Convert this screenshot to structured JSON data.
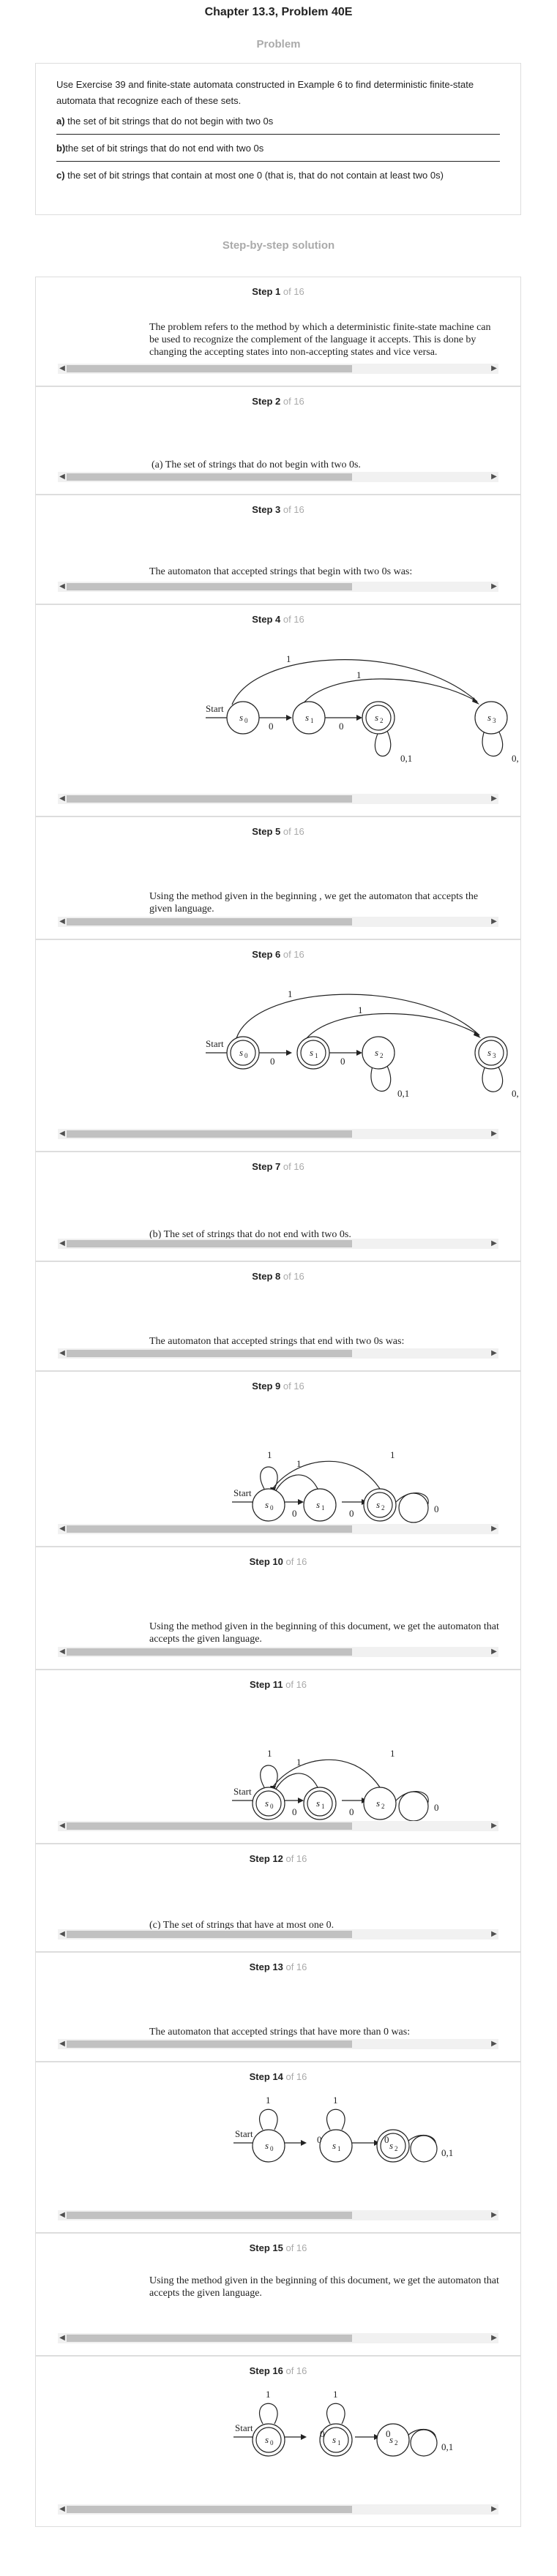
{
  "header": {
    "chapter_title": "Chapter 13.3, Problem 40E",
    "problem_label": "Problem",
    "solution_label": "Step-by-step solution"
  },
  "problem": {
    "intro": "Use Exercise 39 and finite-state automata constructed in Example 6 to find deterministic finite-state automata that recognize each of these sets.",
    "parts": [
      {
        "letter": "a)",
        "text": " the set of bit strings that do not begin with two 0s"
      },
      {
        "letter": "b)",
        "text": "the set of bit strings that do not end with two 0s"
      },
      {
        "letter": "c)",
        "text": " the set of bit strings that contain at most one 0 (that is, that do not contain at least two 0s)"
      }
    ]
  },
  "steps": [
    {
      "number": "Step 1",
      "of": " of 16",
      "text": "The problem refers to the method by which a deterministic finite-state machine can be used to recognize the complement of the language it accepts. This is done by changing the accepting states into non-accepting states and vice versa."
    },
    {
      "number": "Step 2",
      "of": " of 16",
      "text": "(a) The set of strings that do not begin with two 0s."
    },
    {
      "number": "Step 3",
      "of": " of 16",
      "text": "The automaton that accepted strings that begin with two 0s was:"
    },
    {
      "number": "Step 4",
      "of": " of 16"
    },
    {
      "number": "Step 5",
      "of": " of 16",
      "text": "Using the method given in the beginning , we get the automaton that accepts the given language."
    },
    {
      "number": "Step 6",
      "of": " of 16"
    },
    {
      "number": "Step 7",
      "of": " of 16",
      "text": "(b) The set of strings that do not end with two 0s."
    },
    {
      "number": "Step 8",
      "of": " of 16",
      "text": "The automaton that accepted strings that end with two 0s was:"
    },
    {
      "number": "Step 9",
      "of": " of 16"
    },
    {
      "number": "Step 10",
      "of": " of 16",
      "text": "Using the method given in the beginning of this document, we get the automaton that accepts the given language."
    },
    {
      "number": "Step 11",
      "of": " of 16"
    },
    {
      "number": "Step 12",
      "of": " of 16",
      "text": "(c) The set of strings that have at most one 0."
    },
    {
      "number": "Step 13",
      "of": " of 16",
      "text": "The automaton that accepted strings that have more than 0 was:"
    },
    {
      "number": "Step 14",
      "of": " of 16"
    },
    {
      "number": "Step 15",
      "of": " of 16",
      "text": "Using the method given in the beginning of this document, we get the automaton that accepts the given language."
    },
    {
      "number": "Step 16",
      "of": " of 16"
    }
  ],
  "diagram_labels": {
    "start": "Start",
    "s0": "s",
    "s1": "s",
    "s2": "s",
    "s3": "s",
    "sub0": "0",
    "sub1": "1",
    "sub2": "2",
    "sub3": "3",
    "zero": "0",
    "one": "1",
    "zero_one": "0,1",
    "zero_one_cut": "0,",
    "icons": {
      "scroll_left": "◀",
      "scroll_right": "▶"
    }
  }
}
